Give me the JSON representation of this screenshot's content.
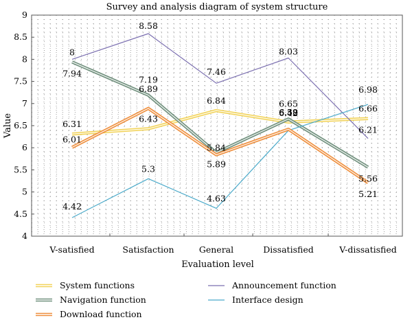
{
  "chart_data": {
    "type": "line",
    "title": "Survey and analysis diagram of system structure",
    "xlabel": "Evaluation level",
    "ylabel": "Value",
    "categories": [
      "V-satisfied",
      "Satisfaction",
      "General",
      "Dissatisfied",
      "V-dissatisfied"
    ],
    "ylim": [
      4,
      9
    ],
    "yticks": [
      "4",
      "4.5",
      "5",
      "5.5",
      "6",
      "6.5",
      "7",
      "7.5",
      "8",
      "8.5",
      "9"
    ],
    "grid": "dotted",
    "legend_position": "bottom",
    "series": [
      {
        "name": "System functions",
        "values": [
          6.31,
          6.43,
          6.84,
          6.58,
          6.66
        ],
        "labels": [
          "6.31",
          "6.43",
          "6.84",
          "6.58",
          "6.66"
        ],
        "color": "#f2d35a",
        "style": "double"
      },
      {
        "name": "Announcement function",
        "values": [
          8,
          8.58,
          7.46,
          8.03,
          6.21
        ],
        "labels": [
          "8",
          "8.58",
          "7.46",
          "8.03",
          "6.21"
        ],
        "color": "#7b6fb0",
        "style": "single"
      },
      {
        "name": "Navigation function",
        "values": [
          7.94,
          7.19,
          5.89,
          6.65,
          5.56
        ],
        "labels": [
          "7.94",
          "7.19",
          "5.89",
          "6.65",
          "5.56"
        ],
        "color": "#6f8f7c",
        "style": "double"
      },
      {
        "name": "Interface design",
        "values": [
          4.42,
          5.3,
          4.63,
          6.39,
          6.98
        ],
        "labels": [
          "4.42",
          "5.3",
          "4.63",
          "6.39",
          "6.98"
        ],
        "color": "#49a9c9",
        "style": "single"
      },
      {
        "name": "Download function",
        "values": [
          6.01,
          6.89,
          5.84,
          6.42,
          5.21
        ],
        "labels": [
          "6.01",
          "6.89",
          "5.84",
          "6.42",
          "5.21"
        ],
        "color": "#ee8e3c",
        "style": "double"
      }
    ]
  }
}
